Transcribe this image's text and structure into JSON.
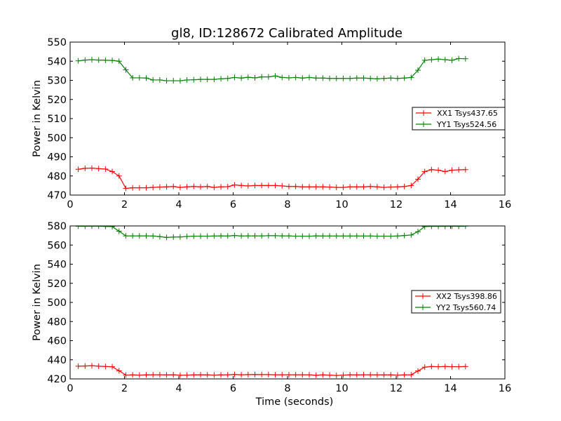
{
  "chart_data": [
    {
      "type": "line",
      "title": "gl8, ID:128672 Calibrated Amplitude",
      "xlabel": "",
      "ylabel": "Power in Kelvin",
      "xlim": [
        0,
        16
      ],
      "ylim": [
        470,
        550
      ],
      "xticks": [
        0,
        2,
        4,
        6,
        8,
        10,
        12,
        14,
        16
      ],
      "yticks": [
        470,
        480,
        490,
        500,
        510,
        520,
        530,
        540,
        550
      ],
      "grid": false,
      "legend": "center-right",
      "x": [
        0.3,
        0.55,
        0.8,
        1.05,
        1.3,
        1.55,
        1.8,
        2.05,
        2.3,
        2.55,
        2.8,
        3.05,
        3.3,
        3.55,
        3.8,
        4.05,
        4.3,
        4.55,
        4.8,
        5.05,
        5.3,
        5.55,
        5.8,
        6.05,
        6.3,
        6.55,
        6.8,
        7.05,
        7.3,
        7.55,
        7.8,
        8.05,
        8.3,
        8.55,
        8.8,
        9.05,
        9.3,
        9.55,
        9.8,
        10.05,
        10.3,
        10.55,
        10.8,
        11.05,
        11.3,
        11.55,
        11.8,
        12.05,
        12.3,
        12.55,
        12.8,
        13.05,
        13.3,
        13.55,
        13.8,
        14.05,
        14.3,
        14.55
      ],
      "series": [
        {
          "name": "XX1 Tsys437.65",
          "color": "#ff0000",
          "values": [
            483.5,
            484,
            484.1,
            483.8,
            483.6,
            482.3,
            480,
            473.5,
            473.8,
            473.8,
            473.8,
            474,
            474.2,
            474.3,
            474.5,
            474.0,
            474.3,
            474.5,
            474.3,
            474.5,
            474.0,
            474.3,
            474.4,
            475.3,
            475.0,
            474.8,
            475.0,
            475.0,
            475.0,
            475.0,
            474.8,
            474.5,
            474.5,
            474.3,
            474.3,
            474.3,
            474.3,
            474.2,
            474.0,
            474.0,
            474.3,
            474.3,
            474.3,
            474.5,
            474.3,
            474.0,
            474.2,
            474.3,
            474.5,
            475.0,
            478.3,
            482.3,
            483.3,
            483.0,
            482.3,
            483.0,
            483.2,
            483.3
          ]
        },
        {
          "name": "YY1 Tsys524.56",
          "color": "#008000",
          "values": [
            540.2,
            540.6,
            540.8,
            540.6,
            540.5,
            540.4,
            540.0,
            535.5,
            531.3,
            531.3,
            531.2,
            530.2,
            530.2,
            529.8,
            529.8,
            529.8,
            530.2,
            530.3,
            530.5,
            530.5,
            530.5,
            530.8,
            531.0,
            531.5,
            531.2,
            531.6,
            531.3,
            531.8,
            531.8,
            532.3,
            531.5,
            531.3,
            531.5,
            531.2,
            531.5,
            531.2,
            531.2,
            531.0,
            531.0,
            531.0,
            531.0,
            531.2,
            531.2,
            531.0,
            530.8,
            531.0,
            531.2,
            531.0,
            531.2,
            531.5,
            535.3,
            540.5,
            540.8,
            541.1,
            540.8,
            540.5,
            541.4,
            541.3
          ]
        }
      ]
    },
    {
      "type": "line",
      "title": "",
      "xlabel": "Time (seconds)",
      "ylabel": "Power in Kelvin",
      "xlim": [
        0,
        16
      ],
      "ylim": [
        420,
        580
      ],
      "xticks": [
        0,
        2,
        4,
        6,
        8,
        10,
        12,
        14,
        16
      ],
      "yticks": [
        420,
        440,
        460,
        480,
        500,
        520,
        540,
        560,
        580
      ],
      "grid": false,
      "legend": "center-right",
      "x": [
        0.3,
        0.55,
        0.8,
        1.05,
        1.3,
        1.55,
        1.8,
        2.05,
        2.3,
        2.55,
        2.8,
        3.05,
        3.3,
        3.55,
        3.8,
        4.05,
        4.3,
        4.55,
        4.8,
        5.05,
        5.3,
        5.55,
        5.8,
        6.05,
        6.3,
        6.55,
        6.8,
        7.05,
        7.3,
        7.55,
        7.8,
        8.05,
        8.3,
        8.55,
        8.8,
        9.05,
        9.3,
        9.55,
        9.8,
        10.05,
        10.3,
        10.55,
        10.8,
        11.05,
        11.3,
        11.55,
        11.8,
        12.05,
        12.3,
        12.55,
        12.8,
        13.05,
        13.3,
        13.55,
        13.8,
        14.05,
        14.3,
        14.55
      ],
      "series": [
        {
          "name": "XX2 Tsys398.86",
          "color": "#ff0000",
          "values": [
            433.3,
            433.5,
            433.8,
            433.3,
            433.0,
            432.7,
            428.5,
            424.0,
            424.2,
            424.0,
            424.2,
            424.3,
            424.3,
            424.2,
            424.3,
            423.9,
            424.0,
            424.2,
            424.3,
            424.2,
            424.0,
            424.2,
            424.3,
            424.6,
            424.3,
            424.5,
            424.6,
            424.5,
            424.5,
            424.3,
            424.3,
            424.3,
            424.3,
            424.3,
            424.3,
            423.8,
            424.2,
            424.0,
            423.6,
            424.0,
            424.3,
            424.2,
            424.3,
            424.3,
            424.2,
            424.2,
            424.2,
            424.0,
            424.2,
            424.3,
            428.3,
            432.3,
            433.0,
            432.8,
            433.0,
            432.8,
            432.8,
            433.0
          ]
        },
        {
          "name": "YY2 Tsys560.74",
          "color": "#008000",
          "values": [
            579.7,
            579.7,
            579.8,
            579.8,
            579.5,
            579.3,
            574.5,
            569.6,
            569.6,
            569.6,
            569.6,
            569.5,
            568.8,
            568.0,
            568.4,
            568.5,
            569.0,
            569.3,
            569.3,
            569.3,
            569.5,
            569.6,
            569.5,
            570.0,
            569.5,
            569.6,
            569.6,
            569.6,
            569.8,
            569.8,
            569.6,
            569.6,
            569.3,
            569.3,
            569.3,
            569.6,
            569.5,
            569.5,
            569.5,
            569.5,
            569.5,
            569.5,
            569.5,
            569.5,
            569.3,
            569.3,
            569.3,
            569.5,
            570.0,
            570.5,
            574.0,
            579.3,
            579.6,
            579.6,
            579.6,
            579.8,
            579.6,
            579.8
          ]
        }
      ]
    }
  ]
}
